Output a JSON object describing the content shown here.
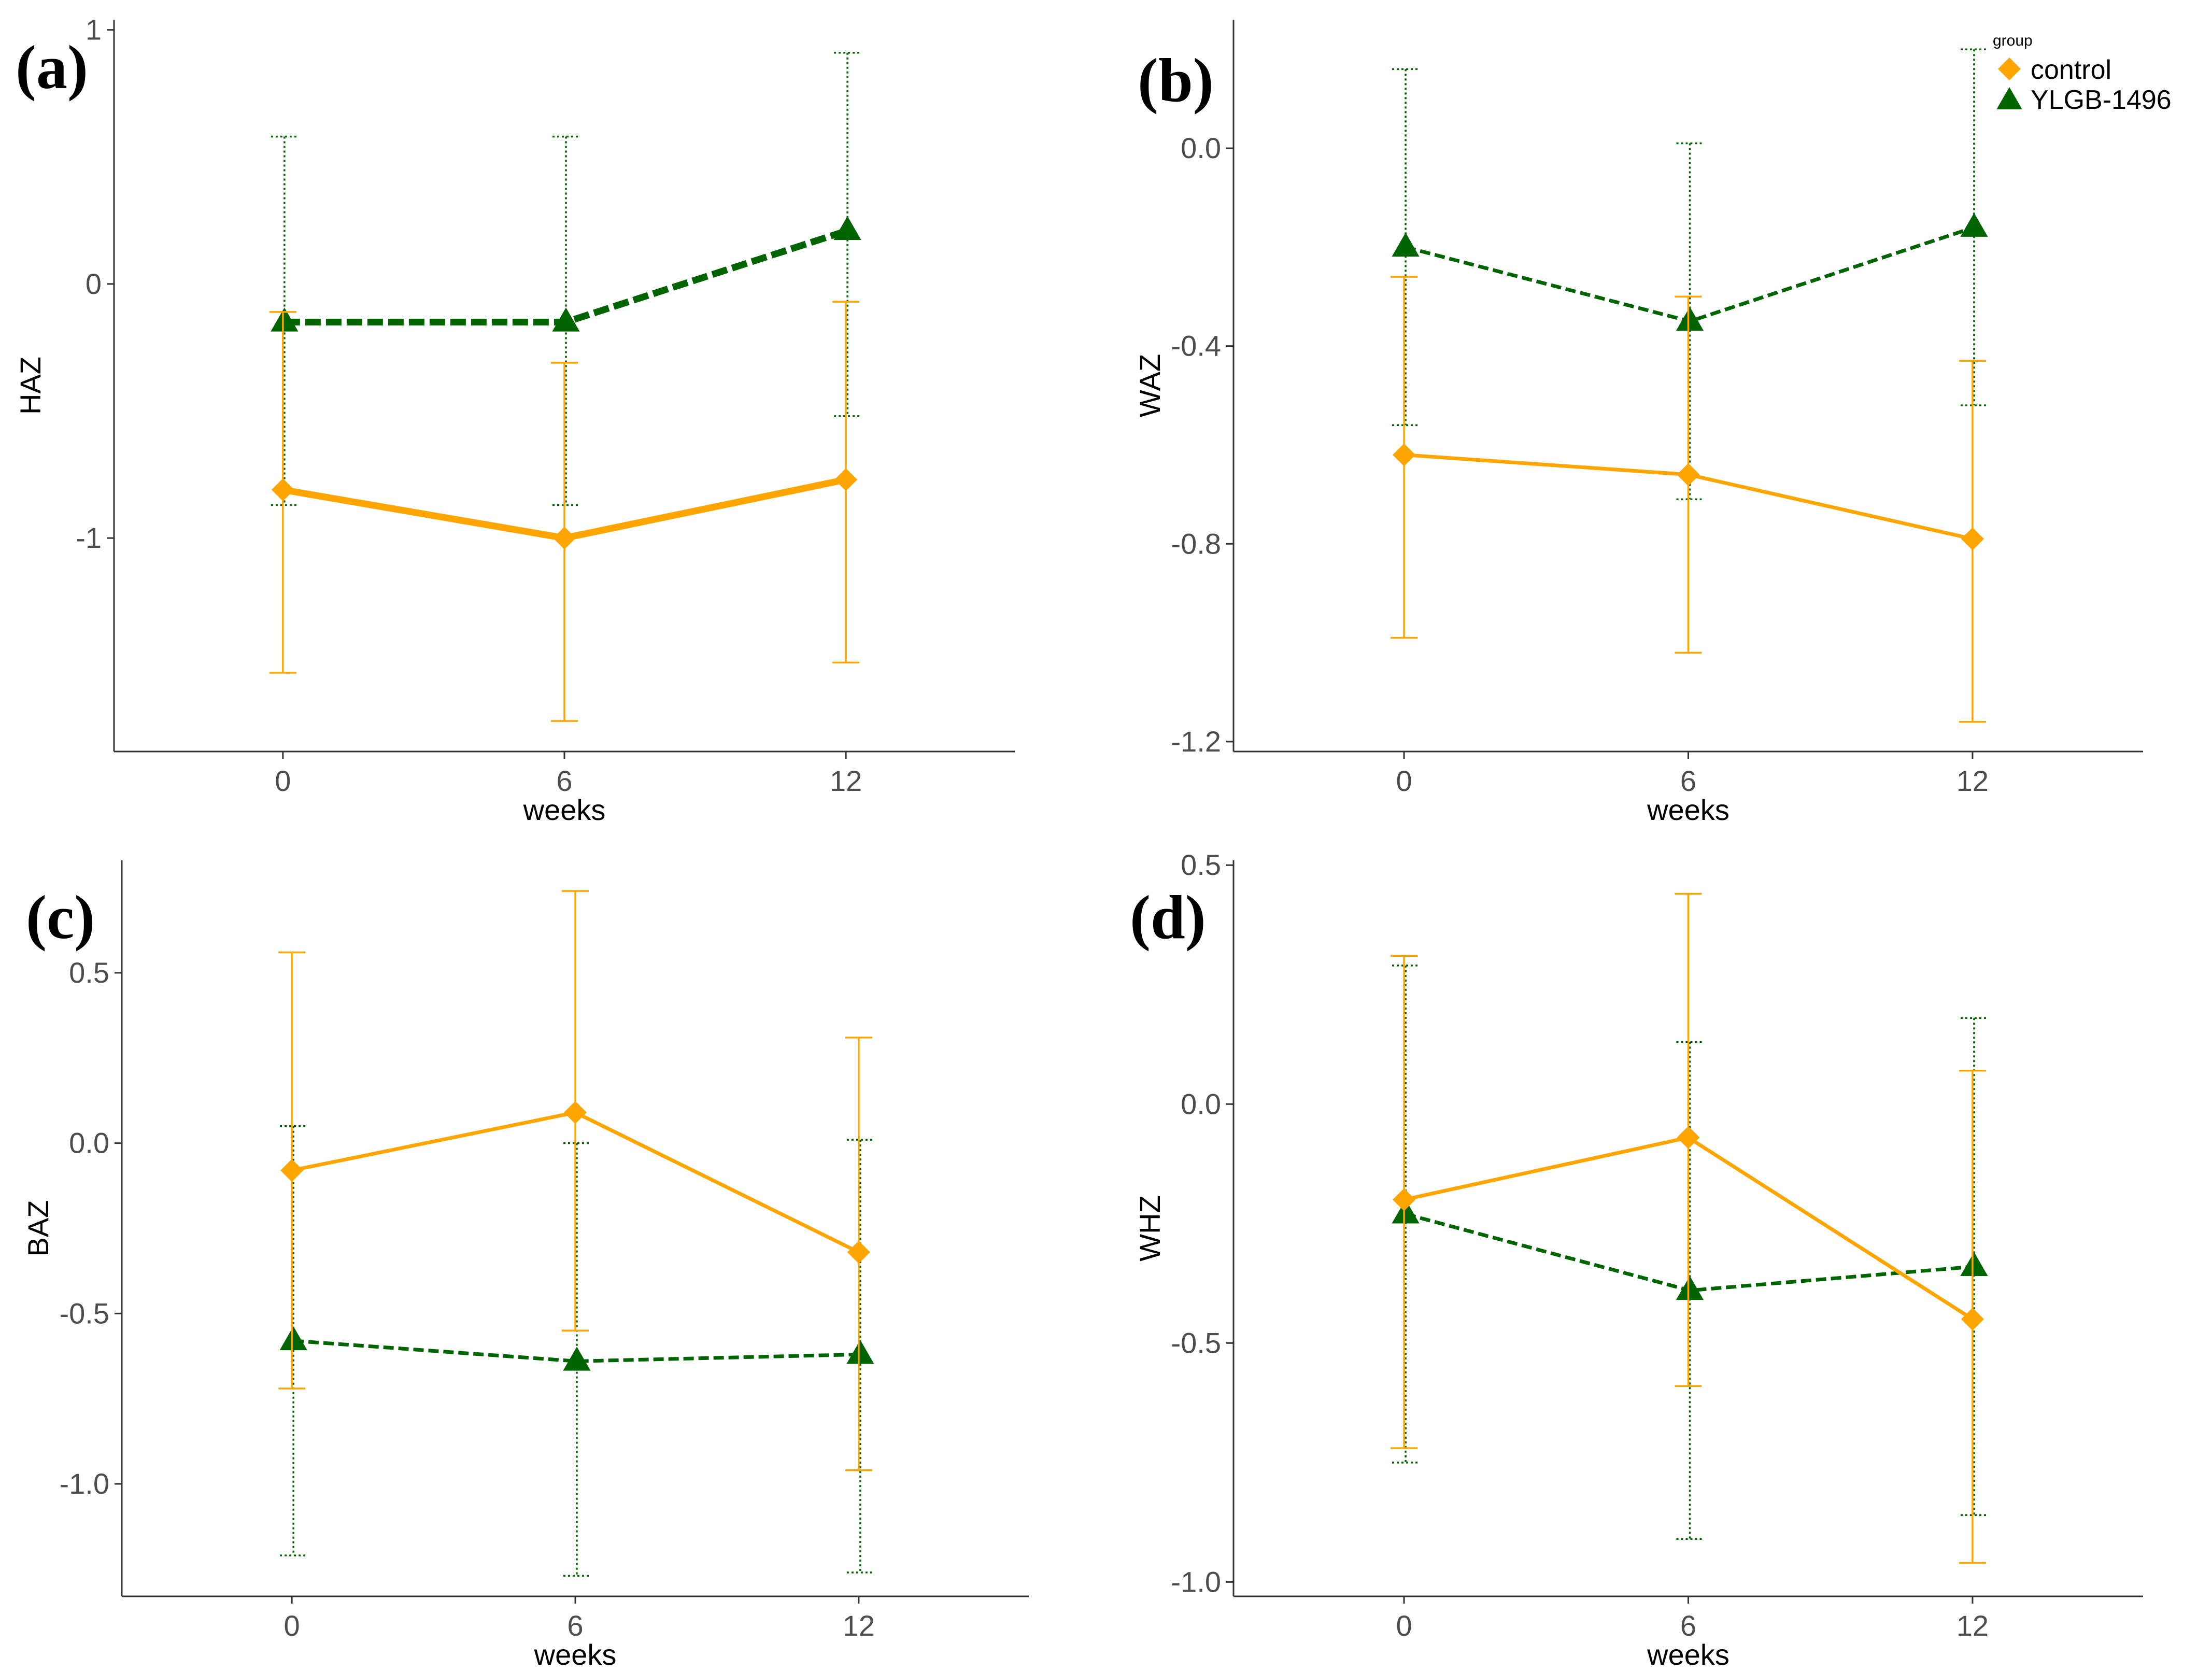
{
  "colors": {
    "control": "#FFA500",
    "ylgb": "#006400",
    "axis": "#333333"
  },
  "legend": {
    "title": "group",
    "items": [
      "control",
      "YLGB-1496"
    ]
  },
  "chart_data": [
    {
      "panel": "(a)",
      "type": "line",
      "xlabel": "weeks",
      "ylabel": "HAZ",
      "x": [
        0,
        6,
        12
      ],
      "xlim": [
        -3.6,
        15.6
      ],
      "ylim": [
        -1.84,
        1.04
      ],
      "yticks": [
        {
          "v": 1,
          "label": "1"
        },
        {
          "v": 0,
          "label": "0"
        },
        {
          "v": -1,
          "label": "-1"
        }
      ],
      "series": [
        {
          "name": "control",
          "values": [
            -0.81,
            -1.0,
            -0.77
          ],
          "lower": [
            -1.53,
            -1.72,
            -1.49
          ],
          "upper": [
            -0.11,
            -0.31,
            -0.07
          ]
        },
        {
          "name": "YLGB-1496",
          "values": [
            -0.15,
            -0.15,
            0.21
          ],
          "lower": [
            -0.87,
            -0.87,
            -0.52
          ],
          "upper": [
            0.58,
            0.58,
            0.91
          ]
        }
      ]
    },
    {
      "panel": "(b)",
      "type": "line",
      "xlabel": "weeks",
      "ylabel": "WAZ",
      "x": [
        0,
        6,
        12
      ],
      "xlim": [
        -3.6,
        15.6
      ],
      "ylim": [
        -1.22,
        0.26
      ],
      "yticks": [
        {
          "v": 0,
          "label": "0.0"
        },
        {
          "v": -0.4,
          "label": "-0.4"
        },
        {
          "v": -0.8,
          "label": "-0.8"
        },
        {
          "v": -1.2,
          "label": "-1.2"
        }
      ],
      "series": [
        {
          "name": "control",
          "values": [
            -0.62,
            -0.66,
            -0.79
          ],
          "lower": [
            -0.99,
            -1.02,
            -1.16
          ],
          "upper": [
            -0.26,
            -0.3,
            -0.43
          ]
        },
        {
          "name": "YLGB-1496",
          "values": [
            -0.2,
            -0.35,
            -0.16
          ],
          "lower": [
            -0.56,
            -0.71,
            -0.52
          ],
          "upper": [
            0.16,
            0.01,
            0.2
          ]
        }
      ]
    },
    {
      "panel": "(c)",
      "type": "line",
      "xlabel": "weeks",
      "ylabel": "BAZ",
      "x": [
        0,
        6,
        12
      ],
      "xlim": [
        -3.6,
        15.6
      ],
      "ylim": [
        -1.33,
        0.83
      ],
      "yticks": [
        {
          "v": 0.5,
          "label": "0.5"
        },
        {
          "v": 0,
          "label": "0.0"
        },
        {
          "v": -0.5,
          "label": "-0.5"
        },
        {
          "v": -1.0,
          "label": "-1.0"
        }
      ],
      "series": [
        {
          "name": "control",
          "values": [
            -0.08,
            0.09,
            -0.32
          ],
          "lower": [
            -0.72,
            -0.55,
            -0.96
          ],
          "upper": [
            0.56,
            0.74,
            0.31
          ]
        },
        {
          "name": "YLGB-1496",
          "values": [
            -0.58,
            -0.64,
            -0.62
          ],
          "lower": [
            -1.21,
            -1.27,
            -1.26
          ],
          "upper": [
            0.05,
            0.0,
            0.01
          ]
        }
      ]
    },
    {
      "panel": "(d)",
      "type": "line",
      "xlabel": "weeks",
      "ylabel": "WHZ",
      "x": [
        0,
        6,
        12
      ],
      "xlim": [
        -3.6,
        15.6
      ],
      "ylim": [
        -1.03,
        0.51
      ],
      "yticks": [
        {
          "v": 0.5,
          "label": "0.5"
        },
        {
          "v": 0,
          "label": "0.0"
        },
        {
          "v": -0.5,
          "label": "-0.5"
        },
        {
          "v": -1.0,
          "label": "-1.0"
        }
      ],
      "series": [
        {
          "name": "control",
          "values": [
            -0.2,
            -0.07,
            -0.45
          ],
          "lower": [
            -0.72,
            -0.59,
            -0.96
          ],
          "upper": [
            0.31,
            0.44,
            0.07
          ]
        },
        {
          "name": "YLGB-1496",
          "values": [
            -0.23,
            -0.39,
            -0.34
          ],
          "lower": [
            -0.75,
            -0.91,
            -0.86
          ],
          "upper": [
            0.29,
            0.13,
            0.18
          ]
        }
      ]
    }
  ]
}
